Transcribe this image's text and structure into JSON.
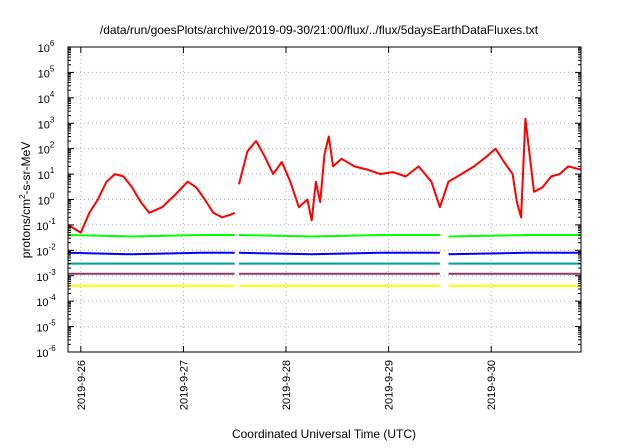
{
  "chart_data": {
    "type": "line",
    "title": "/data/run/goesPlots/archive/2019-09-30/21:00/flux/../flux/5daysEarthDataFluxes.txt",
    "xlabel": "Coordinated Universal Time (UTC)",
    "ylabel": {
      "base": "protons/cm",
      "sup": "2",
      "rest": "-s-sr-MeV"
    },
    "x_is_time": true,
    "xlim": [
      "2019-09-25 21:00",
      "2019-09-30 21:00"
    ],
    "x_ticks": [
      "2019-9-26",
      "2019-9-27",
      "2019-9-28",
      "2019-9-29",
      "2019-9-30"
    ],
    "y_scale": "log",
    "ylim": [
      1e-06,
      1000000.0
    ],
    "y_ticks": [
      -6,
      -5,
      -4,
      -3,
      -2,
      -1,
      0,
      1,
      2,
      3,
      4,
      5,
      6
    ],
    "y_tick_base": "10",
    "grid": true,
    "gaps": [
      [
        "2019-9-27 12:00",
        "2019-9-27 13:00"
      ],
      [
        "2019-9-29 12:00",
        "2019-9-29 14:00"
      ]
    ],
    "series": [
      {
        "color": "#ff0000",
        "x": [
          "2019-9-25 21:00",
          "2019-9-26 00:00",
          "2019-9-26 02:00",
          "2019-9-26 04:00",
          "2019-9-26 06:00",
          "2019-9-26 08:00",
          "2019-9-26 10:00",
          "2019-9-26 12:00",
          "2019-9-26 14:00",
          "2019-9-26 16:00",
          "2019-9-26 19:00",
          "2019-9-26 22:00",
          "2019-9-27 01:00",
          "2019-9-27 03:00",
          "2019-9-27 05:00",
          "2019-9-27 07:00",
          "2019-9-27 09:00",
          "2019-9-27 11:00",
          "2019-9-27 12:00",
          null,
          "2019-9-27 13:00",
          "2019-9-27 15:00",
          "2019-9-27 17:00",
          "2019-9-27 19:00",
          "2019-9-27 21:00",
          "2019-9-27 23:00",
          "2019-9-28 01:00",
          "2019-9-28 03:00",
          "2019-9-28 05:00",
          "2019-9-28 06:00",
          "2019-9-28 07:00",
          "2019-9-28 08:00",
          "2019-9-28 09:00",
          "2019-9-28 10:00",
          "2019-9-28 11:00",
          "2019-9-28 13:00",
          "2019-9-28 16:00",
          "2019-9-28 19:00",
          "2019-9-28 22:00",
          "2019-9-29 01:00",
          "2019-9-29 04:00",
          "2019-9-29 07:00",
          "2019-9-29 10:00",
          "2019-9-29 12:00",
          "2019-9-29 14:00",
          "2019-9-29 17:00",
          "2019-9-29 20:00",
          "2019-9-29 23:00",
          "2019-9-30 01:00",
          "2019-9-30 03:00",
          "2019-9-30 05:00",
          "2019-9-30 06:00",
          "2019-9-30 07:00",
          "2019-9-30 08:00",
          "2019-9-30 10:00",
          "2019-9-30 12:00",
          "2019-9-30 14:00",
          "2019-9-30 16:00",
          "2019-9-30 18:00",
          "2019-9-30 21:00"
        ],
        "values": [
          0.1,
          0.05,
          0.3,
          1,
          5,
          10,
          8,
          3,
          0.8,
          0.3,
          0.5,
          1.5,
          5,
          3,
          1,
          0.3,
          0.2,
          0.25,
          0.3,
          null,
          4,
          80,
          200,
          50,
          10,
          30,
          5,
          0.5,
          1,
          0.15,
          5,
          0.8,
          60,
          300,
          20,
          40,
          20,
          15,
          10,
          12,
          8,
          20,
          5,
          0.5,
          5,
          10,
          20,
          50,
          100,
          30,
          10,
          0.8,
          0.2,
          1500,
          2,
          3,
          8,
          10,
          20,
          15
        ]
      },
      {
        "color": "#00ff00",
        "x": [
          "2019-9-25 21:00",
          "2019-9-26 12:00",
          "2019-9-27 04:00",
          "2019-9-27 12:00",
          null,
          "2019-9-27 13:00",
          "2019-9-28 06:00",
          "2019-9-28 22:00",
          "2019-9-29 12:00",
          null,
          "2019-9-29 14:00",
          "2019-9-30 08:00",
          "2019-9-30 21:00"
        ],
        "values": [
          0.04,
          0.035,
          0.04,
          0.04,
          null,
          0.04,
          0.035,
          0.04,
          0.04,
          null,
          0.035,
          0.04,
          0.04
        ]
      },
      {
        "color": "#0000ff",
        "x": [
          "2019-9-25 21:00",
          "2019-9-26 12:00",
          "2019-9-27 04:00",
          "2019-9-27 12:00",
          null,
          "2019-9-27 13:00",
          "2019-9-28 06:00",
          "2019-9-28 22:00",
          "2019-9-29 12:00",
          null,
          "2019-9-29 14:00",
          "2019-9-30 08:00",
          "2019-9-30 21:00"
        ],
        "values": [
          0.008,
          0.007,
          0.008,
          0.008,
          null,
          0.008,
          0.007,
          0.008,
          0.008,
          null,
          0.007,
          0.008,
          0.008
        ]
      },
      {
        "color": "#00a0a0",
        "x": [
          "2019-9-25 21:00",
          "2019-9-27 12:00",
          null,
          "2019-9-27 13:00",
          "2019-9-29 12:00",
          null,
          "2019-9-29 14:00",
          "2019-9-30 21:00"
        ],
        "values": [
          0.003,
          0.003,
          null,
          0.003,
          0.003,
          null,
          0.003,
          0.003
        ]
      },
      {
        "color": "#8b3a62",
        "x": [
          "2019-9-25 21:00",
          "2019-9-27 12:00",
          null,
          "2019-9-27 13:00",
          "2019-9-29 12:00",
          null,
          "2019-9-29 14:00",
          "2019-9-30 21:00"
        ],
        "values": [
          0.0012,
          0.0012,
          null,
          0.0012,
          0.0012,
          null,
          0.0012,
          0.0012
        ]
      },
      {
        "color": "#ffff00",
        "x": [
          "2019-9-25 21:00",
          "2019-9-27 12:00",
          null,
          "2019-9-27 13:00",
          "2019-9-29 12:00",
          null,
          "2019-9-29 14:00",
          "2019-9-30 21:00"
        ],
        "values": [
          0.0004,
          0.0004,
          null,
          0.0004,
          0.0004,
          null,
          0.0004,
          0.0004
        ]
      }
    ]
  }
}
